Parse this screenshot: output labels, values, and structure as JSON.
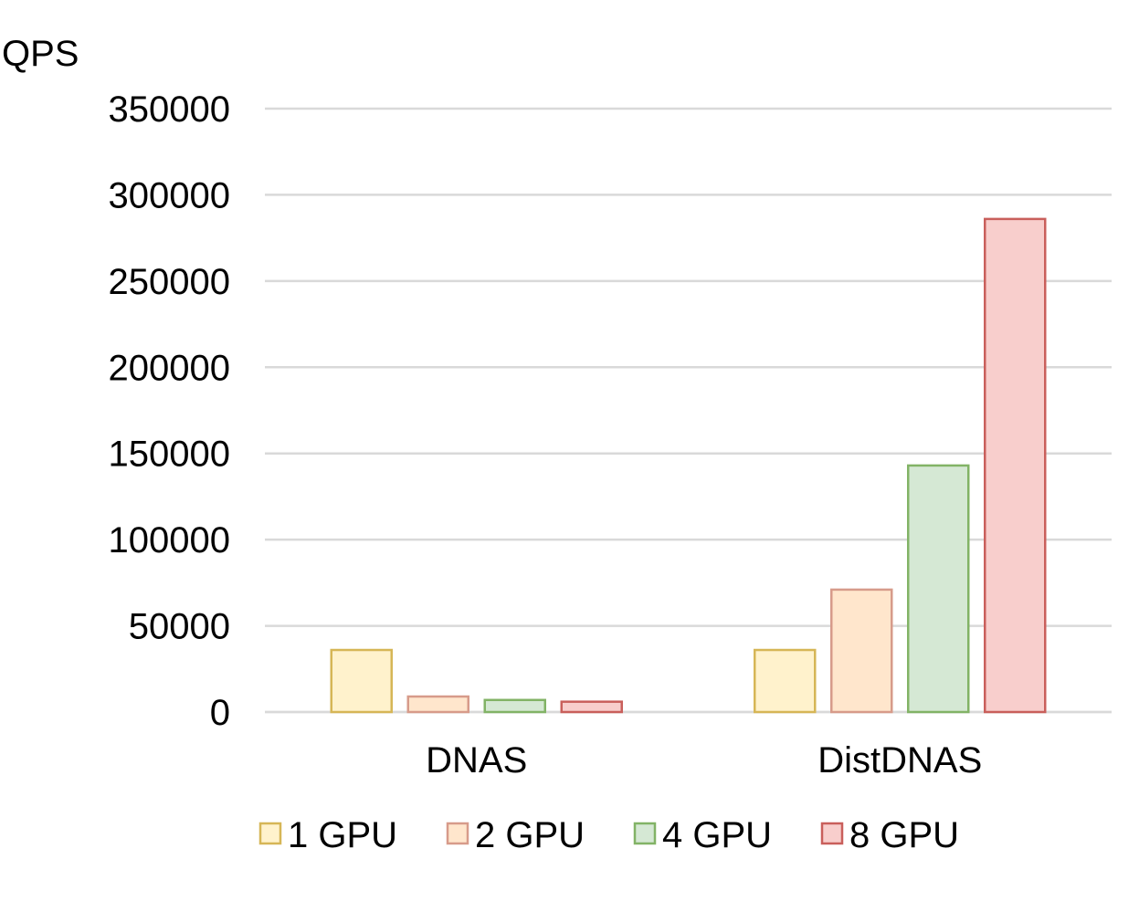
{
  "chart_data": {
    "type": "bar",
    "title": "",
    "ylabel": "QPS",
    "xlabel": "",
    "categories": [
      "DNAS",
      "DistDNAS"
    ],
    "ylim": [
      0,
      350000
    ],
    "yticks": [
      0,
      50000,
      100000,
      150000,
      200000,
      250000,
      300000,
      350000
    ],
    "grid": true,
    "legend_position": "bottom",
    "series": [
      {
        "name": "1 GPU",
        "values": [
          36000,
          36000
        ],
        "fill": "#fff2cc",
        "stroke": "#d6b656"
      },
      {
        "name": "2 GPU",
        "values": [
          9000,
          71000
        ],
        "fill": "#ffe6cc",
        "stroke": "#d79b8a"
      },
      {
        "name": "4 GPU",
        "values": [
          7000,
          143000
        ],
        "fill": "#d5e8d4",
        "stroke": "#82b366"
      },
      {
        "name": "8 GPU",
        "values": [
          6000,
          286000
        ],
        "fill": "#f8cecc",
        "stroke": "#c95f5b"
      }
    ]
  }
}
